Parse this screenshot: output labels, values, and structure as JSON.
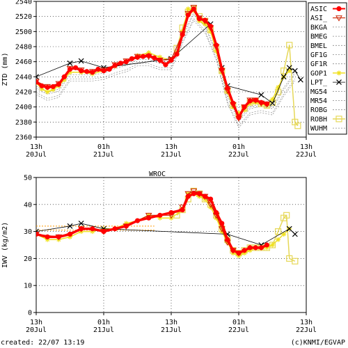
{
  "footer": {
    "created": "created: 22/07 13:19",
    "credit": "(c)KNMI/EGVAP"
  },
  "colors": {
    "ASIC": "#ff0000",
    "ASI_": "#cc2200",
    "GOP1": "#f0e020",
    "ROBH": "#e6d858",
    "LPT_": "#000000",
    "other": "#888888",
    "refline": "#ff9900"
  },
  "chart_data": [
    {
      "type": "line",
      "title": "",
      "xlabel": "",
      "ylabel": "ZTD (mm)",
      "x_ticks": [
        {
          "hour": 0,
          "label1": "13h",
          "label2": "20Jul"
        },
        {
          "hour": 12,
          "label1": "01h",
          "label2": "21Jul"
        },
        {
          "hour": 24,
          "label1": "13h",
          "label2": "21Jul"
        },
        {
          "hour": 36,
          "label1": "01h",
          "label2": "22Jul"
        },
        {
          "hour": 48,
          "label1": "13h",
          "label2": "22Jul"
        }
      ],
      "x_unit": "hours since 20Jul 13h",
      "xlim": [
        0,
        48
      ],
      "ylim": [
        2360,
        2540
      ],
      "yticks": [
        2360,
        2380,
        2400,
        2420,
        2440,
        2460,
        2480,
        2500,
        2520,
        2540
      ],
      "legend": [
        "ASIC",
        "ASI_",
        "BKGA",
        "BMEG",
        "BMEL",
        "GF1G",
        "GF1R",
        "GOP1",
        "LPT_",
        "MG54",
        "MR54",
        "ROBG",
        "ROBH",
        "WUHM"
      ],
      "legend_placement": "right",
      "series": [
        {
          "name": "ASIC",
          "x": [
            0,
            1,
            2,
            3,
            4,
            5,
            6,
            7,
            8,
            9,
            10,
            11,
            12,
            13,
            14,
            15,
            16,
            17,
            18,
            19,
            20,
            21,
            22,
            23,
            24,
            25,
            26,
            27,
            28,
            29,
            30,
            31,
            32,
            33,
            34,
            35,
            36,
            37,
            38,
            39,
            40,
            41,
            42,
            43,
            44,
            45,
            46
          ],
          "y": [
            2433,
            2428,
            2426,
            2427,
            2430,
            2440,
            2450,
            2452,
            2448,
            2447,
            2446,
            2450,
            2448,
            2450,
            2455,
            2458,
            2460,
            2464,
            2466,
            2467,
            2468,
            2465,
            2462,
            2456,
            2462,
            2470,
            2496,
            2522,
            2530,
            2517,
            2515,
            2507,
            2482,
            2450,
            2425,
            2405,
            2386,
            2400,
            2408,
            2409,
            2406,
            2404,
            null,
            null,
            null,
            null,
            null
          ]
        },
        {
          "name": "ASI_",
          "x": [
            0,
            2,
            4,
            6,
            8,
            10,
            12,
            14,
            16,
            18,
            20,
            22,
            24,
            26,
            27,
            28,
            29,
            30,
            31,
            32,
            33,
            34,
            35,
            36,
            37,
            38,
            39,
            40,
            41
          ],
          "y": [
            2434,
            2427,
            2431,
            2451,
            2449,
            2447,
            2449,
            2456,
            2461,
            2467,
            2467,
            2462,
            2463,
            2497,
            2524,
            2532,
            2518,
            2514,
            2505,
            2480,
            2448,
            2422,
            2403,
            2385,
            2400,
            2409,
            2409,
            2405,
            2404
          ]
        },
        {
          "name": "GOP1",
          "x": [
            0,
            1,
            2,
            3,
            4,
            5,
            6,
            8,
            10,
            12,
            14,
            16,
            18,
            20,
            22,
            24,
            25,
            26,
            27,
            28,
            29,
            30,
            31,
            32,
            33,
            34,
            35,
            36,
            37,
            38,
            39,
            40,
            41,
            42,
            43,
            44,
            45
          ],
          "y": [
            2432,
            2424,
            2420,
            2423,
            2428,
            2436,
            2446,
            2446,
            2444,
            2448,
            2454,
            2460,
            2468,
            2472,
            2466,
            2462,
            2472,
            2500,
            2530,
            2528,
            2514,
            2510,
            2500,
            2474,
            2446,
            2420,
            2400,
            2392,
            2396,
            2405,
            2406,
            2404,
            2402,
            2410,
            2426,
            2440,
            2448
          ]
        },
        {
          "name": "ROBH",
          "x": [
            25,
            26,
            27,
            28,
            29,
            30,
            31,
            32,
            33,
            34,
            35,
            36,
            37,
            38,
            39,
            40,
            41,
            42,
            43,
            44,
            45,
            46,
            46.5
          ],
          "y": [
            2478,
            2505,
            2526,
            2530,
            2520,
            2514,
            2502,
            2478,
            2448,
            2422,
            2402,
            2390,
            2398,
            2406,
            2408,
            2404,
            2402,
            2406,
            2420,
            2448,
            2482,
            2380,
            2375
          ]
        },
        {
          "name": "LPT_",
          "x": [
            0,
            6,
            8,
            12,
            24,
            31,
            33,
            34,
            40,
            42,
            44,
            45,
            46,
            47
          ],
          "y": [
            2440,
            2458,
            2461,
            2452,
            2464,
            2510,
            2452,
            2428,
            2416,
            2405,
            2440,
            2452,
            2448,
            2436
          ]
        },
        {
          "name": "other",
          "x": [
            0,
            2,
            4,
            6,
            8,
            10,
            12,
            14,
            16,
            18,
            20,
            22,
            24,
            26,
            28,
            30,
            32,
            34,
            36,
            38,
            40,
            42,
            44,
            46
          ],
          "y": [
            2422,
            2414,
            2418,
            2440,
            2440,
            2440,
            2442,
            2448,
            2452,
            2460,
            2460,
            2455,
            2455,
            2490,
            2520,
            2504,
            2468,
            2410,
            2378,
            2395,
            2398,
            2395,
            2420,
            2440
          ]
        }
      ]
    },
    {
      "type": "line",
      "title": "WROC",
      "xlabel": "",
      "ylabel": "IWV (kg/m2)",
      "x_ticks": [
        {
          "hour": 0,
          "label1": "13h",
          "label2": "20Jul"
        },
        {
          "hour": 12,
          "label1": "01h",
          "label2": "21Jul"
        },
        {
          "hour": 24,
          "label1": "13h",
          "label2": "21Jul"
        },
        {
          "hour": 36,
          "label1": "01h",
          "label2": "22Jul"
        },
        {
          "hour": 48,
          "label1": "13h",
          "label2": "22Jul"
        }
      ],
      "x_unit": "hours since 20Jul 13h",
      "xlim": [
        0,
        48
      ],
      "ylim": [
        0,
        50
      ],
      "yticks": [
        0,
        10,
        20,
        30,
        40,
        50
      ],
      "reference_lines": [
        {
          "y": 32
        },
        {
          "y": 30.5
        }
      ],
      "series": [
        {
          "name": "ASIC",
          "x": [
            0,
            2,
            4,
            6,
            8,
            10,
            12,
            14,
            16,
            18,
            20,
            22,
            24,
            26,
            27,
            28,
            29,
            30,
            31,
            32,
            33,
            34,
            35,
            36,
            37,
            38,
            39,
            40,
            41
          ],
          "y": [
            29,
            28,
            28,
            29,
            31,
            31,
            30,
            31,
            32,
            34,
            35,
            36,
            37,
            38,
            43,
            44,
            44,
            43,
            42,
            37,
            33,
            27,
            23,
            22,
            23,
            24,
            24,
            24,
            25
          ]
        },
        {
          "name": "ASI_",
          "x": [
            0,
            4,
            8,
            12,
            16,
            20,
            24,
            26,
            27,
            28,
            29,
            30,
            31,
            32,
            33,
            34,
            35,
            36
          ],
          "y": [
            29,
            28,
            31,
            30,
            32,
            36,
            36,
            39,
            44,
            45,
            44,
            43,
            40,
            36,
            31,
            26,
            23,
            22
          ]
        },
        {
          "name": "GOP1",
          "x": [
            0,
            2,
            4,
            6,
            8,
            10,
            12,
            14,
            16,
            18,
            20,
            22,
            24,
            26,
            27,
            28,
            29,
            30,
            31,
            32,
            33,
            34,
            35,
            36,
            37,
            38,
            39,
            40,
            41,
            42,
            43,
            44,
            45
          ],
          "y": [
            29,
            27,
            27,
            28,
            30,
            30,
            31,
            31,
            33,
            34,
            36,
            35,
            35,
            38,
            44,
            44,
            43,
            42,
            39,
            35,
            30,
            26,
            22,
            21,
            22,
            23,
            24,
            24,
            24,
            25,
            27,
            29,
            31
          ]
        },
        {
          "name": "ROBH",
          "x": [
            25,
            26,
            27,
            28,
            29,
            30,
            31,
            32,
            33,
            34,
            35,
            36,
            37,
            38,
            39,
            40,
            41,
            42,
            43,
            44,
            44.5,
            45,
            46
          ],
          "y": [
            36,
            38,
            42,
            45,
            44,
            42,
            40,
            36,
            31,
            27,
            23,
            22,
            23,
            24,
            24,
            24,
            24,
            25,
            30,
            35,
            36,
            20,
            19
          ]
        },
        {
          "name": "LPT_",
          "x": [
            0,
            6,
            8,
            12,
            34,
            40,
            45,
            46
          ],
          "y": [
            30,
            32,
            33,
            31,
            29,
            25,
            31,
            29
          ]
        }
      ]
    }
  ]
}
